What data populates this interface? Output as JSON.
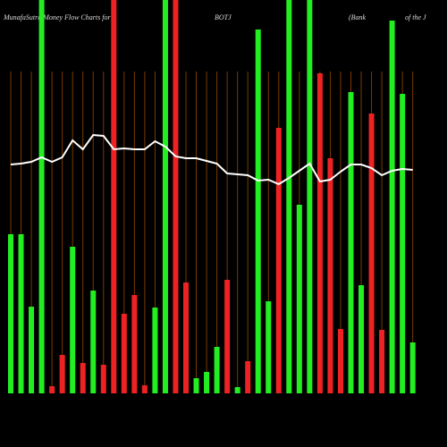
{
  "chart_data": {
    "type": "bar",
    "title_parts": [
      "MunafaSutra Money Flow Charts for",
      "BOTJ",
      "(Bank",
      "of the J"
    ],
    "values": [
      178,
      178,
      97,
      440,
      8,
      43,
      164,
      34,
      115,
      32,
      440,
      89,
      110,
      9,
      96,
      440,
      440,
      124,
      17,
      24,
      52,
      127,
      7,
      36,
      407,
      103,
      297,
      440,
      211,
      440,
      358,
      263,
      72,
      337,
      121,
      313,
      71,
      417,
      335,
      57
    ],
    "colors": [
      "#22ee22",
      "#22ee22",
      "#22ee22",
      "#22ee22",
      "#ee2222",
      "#ee2222",
      "#22ee22",
      "#ee2222",
      "#22ee22",
      "#ee2222",
      "#ee2222",
      "#ee2222",
      "#ee2222",
      "#ee2222",
      "#22ee22",
      "#22ee22",
      "#ee2222",
      "#ee2222",
      "#22ee22",
      "#22ee22",
      "#22ee22",
      "#ee2222",
      "#22ee22",
      "#ee2222",
      "#22ee22",
      "#22ee22",
      "#ee2222",
      "#22ee22",
      "#22ee22",
      "#22ee22",
      "#ee2222",
      "#ee2222",
      "#ee2222",
      "#22ee22",
      "#22ee22",
      "#ee2222",
      "#ee2222",
      "#22ee22",
      "#22ee22",
      "#22ee22"
    ],
    "line": {
      "color": "#ffffff",
      "values": [
        256,
        257,
        259,
        264,
        259,
        264,
        283,
        273,
        289,
        288,
        273,
        274,
        273,
        273,
        282,
        276,
        265,
        263,
        263,
        260,
        257,
        246,
        245,
        244,
        238,
        239,
        234,
        241,
        249,
        257,
        237,
        239,
        248,
        256,
        256,
        252,
        244,
        249,
        251,
        250
      ]
    },
    "ylim": [
      0,
      440
    ],
    "grid": true,
    "grid_color": "#7a3a00",
    "background": "#000000"
  }
}
